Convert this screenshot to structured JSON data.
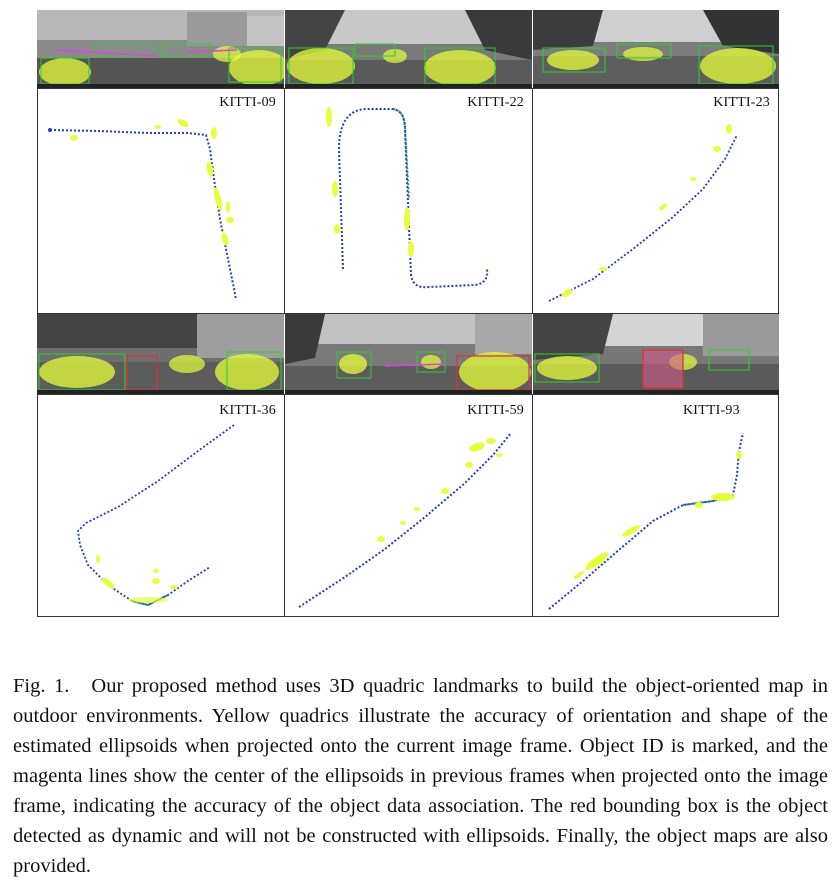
{
  "figure": {
    "panels": [
      {
        "label": "KITTI-09"
      },
      {
        "label": "KITTI-22"
      },
      {
        "label": "KITTI-23"
      },
      {
        "label": "KITTI-36"
      },
      {
        "label": "KITTI-59"
      },
      {
        "label": "KITTI-93"
      }
    ]
  },
  "caption": {
    "label": "Fig. 1.",
    "text": "Our proposed method uses 3D quadric landmarks to build the object-oriented map in outdoor environments. Yellow quadrics illustrate the accuracy of orientation and shape of the estimated ellipsoids when projected onto the current image frame. Object ID is marked, and the magenta lines show the center of the ellipsoids in previous frames when projected onto the image frame, indicating the accuracy of the object data association. The red bounding box is the object detected as dynamic and will not be constructed with ellipsoids. Finally, the object maps are also provided."
  },
  "colors": {
    "trajectory": "#1f3fbf",
    "trajectory_alt": "#2e8b57",
    "landmark": "#e6ff3a",
    "box_green": "#2bd12b",
    "box_red": "#e03030",
    "assoc_line": "#e040e0"
  }
}
